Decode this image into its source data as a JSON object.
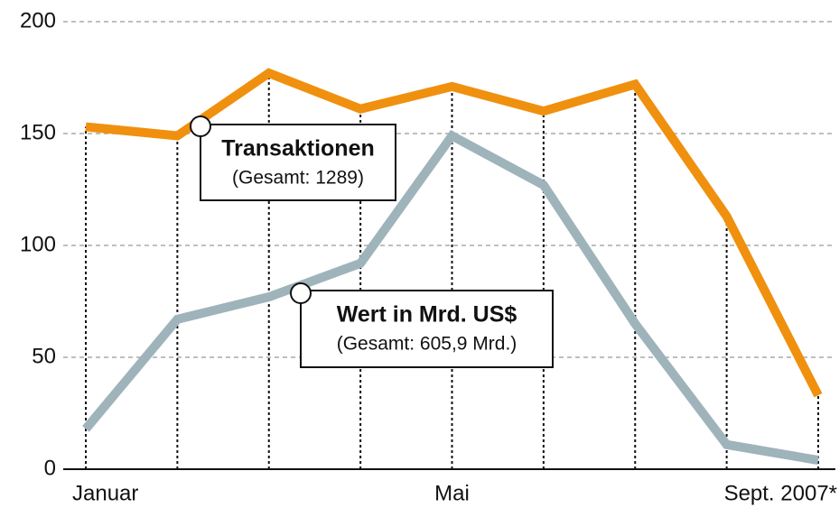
{
  "chart_data": {
    "type": "line",
    "categories": [
      "Januar",
      null,
      null,
      null,
      "Mai",
      null,
      null,
      null,
      "Sept. 2007*"
    ],
    "series": [
      {
        "name": "Transaktionen",
        "total_label": "(Gesamt: 1289)",
        "color": "#f0900f",
        "values": [
          153,
          149,
          177,
          161,
          171,
          160,
          172,
          113,
          33
        ]
      },
      {
        "name": "Wert in Mrd. US$",
        "total_label": "(Gesamt: 605,9 Mrd.)",
        "color": "#9fb3ba",
        "values": [
          18,
          67,
          77,
          92,
          149,
          127,
          65,
          11,
          4
        ]
      }
    ],
    "ylim": [
      0,
      200
    ],
    "yticks": [
      0,
      50,
      100,
      150,
      200
    ],
    "grid": true
  }
}
